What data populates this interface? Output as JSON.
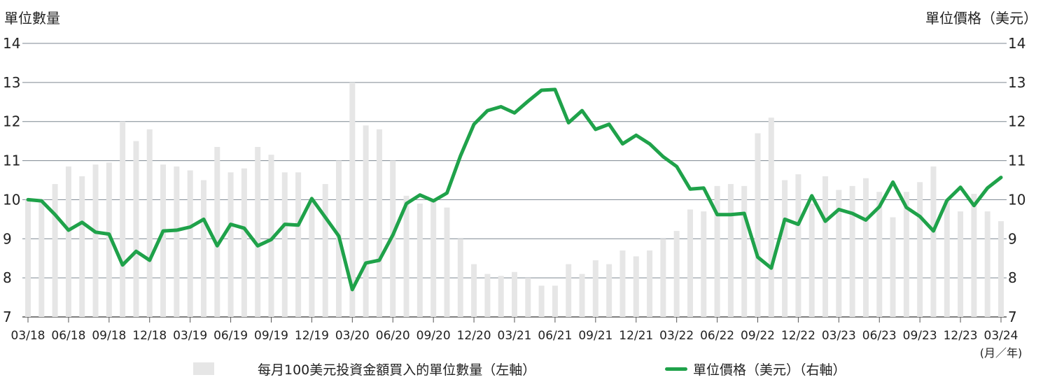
{
  "chart_data": {
    "type": "bar+line",
    "title": "",
    "left_axis_title": "單位數量",
    "right_axis_title": "單位價格（美元）",
    "x_unit_label": "(月／年)",
    "ylim": [
      7,
      14
    ],
    "yticks": [
      7,
      8,
      9,
      10,
      11,
      12,
      13,
      14
    ],
    "grid": true,
    "legend_position": "bottom",
    "x_tick_labels": [
      "03/18",
      "06/18",
      "09/18",
      "12/18",
      "03/19",
      "06/19",
      "09/19",
      "12/19",
      "03/20",
      "06/20",
      "09/20",
      "12/20",
      "03/21",
      "06/21",
      "09/21",
      "12/21",
      "03/22",
      "06/22",
      "09/22",
      "12/22",
      "03/23",
      "06/23",
      "09/23",
      "12/23",
      "03/24"
    ],
    "x_months": [
      "03/18",
      "04/18",
      "05/18",
      "06/18",
      "07/18",
      "08/18",
      "09/18",
      "10/18",
      "11/18",
      "12/18",
      "01/19",
      "02/19",
      "03/19",
      "04/19",
      "05/19",
      "06/19",
      "07/19",
      "08/19",
      "09/19",
      "10/19",
      "11/19",
      "12/19",
      "01/20",
      "02/20",
      "03/20",
      "04/20",
      "05/20",
      "06/20",
      "07/20",
      "08/20",
      "09/20",
      "10/20",
      "11/20",
      "12/20",
      "01/21",
      "02/21",
      "03/21",
      "04/21",
      "05/21",
      "06/21",
      "07/21",
      "08/21",
      "09/21",
      "10/21",
      "11/21",
      "12/21",
      "01/22",
      "02/22",
      "03/22",
      "04/22",
      "05/22",
      "06/22",
      "07/22",
      "08/22",
      "09/22",
      "10/22",
      "11/22",
      "12/22",
      "01/23",
      "02/23",
      "03/23",
      "04/23",
      "05/23",
      "06/23",
      "07/23",
      "08/23",
      "09/23",
      "10/23",
      "11/23",
      "12/23",
      "01/24",
      "02/24",
      "03/24"
    ],
    "series": [
      {
        "name": "每月100美元投資金額買入的單位數量（左軸）",
        "type": "bar",
        "axis": "left",
        "color": "#e6e6e6",
        "values": [
          10.0,
          10.0,
          10.4,
          10.85,
          10.6,
          10.9,
          10.95,
          12.0,
          11.5,
          11.8,
          10.9,
          10.85,
          10.75,
          10.5,
          11.35,
          10.7,
          10.8,
          11.35,
          11.15,
          10.7,
          10.7,
          10.0,
          10.4,
          11.0,
          13.0,
          11.9,
          11.8,
          11.0,
          10.1,
          9.9,
          10.0,
          9.8,
          9.0,
          8.35,
          8.1,
          8.05,
          8.15,
          8.0,
          7.8,
          7.8,
          8.35,
          8.1,
          8.45,
          8.35,
          8.7,
          8.55,
          8.7,
          9.0,
          9.2,
          9.75,
          9.7,
          10.35,
          10.4,
          10.35,
          11.7,
          12.1,
          10.5,
          10.65,
          9.9,
          10.6,
          10.25,
          10.35,
          10.55,
          10.2,
          9.55,
          10.2,
          10.45,
          10.85,
          10.0,
          9.7,
          10.15,
          9.7,
          9.45
        ]
      },
      {
        "name": "單位價格（美元）（右軸）",
        "type": "line",
        "axis": "right",
        "color": "#1fa24a",
        "values": [
          10.0,
          9.97,
          9.62,
          9.22,
          9.42,
          9.17,
          9.12,
          8.33,
          8.68,
          8.45,
          9.2,
          9.22,
          9.3,
          9.5,
          8.82,
          9.37,
          9.27,
          8.82,
          8.98,
          9.37,
          9.35,
          10.03,
          9.55,
          9.07,
          7.7,
          8.38,
          8.45,
          9.1,
          9.9,
          10.12,
          9.97,
          10.17,
          11.12,
          11.93,
          12.28,
          12.38,
          12.22,
          12.52,
          12.8,
          12.82,
          11.97,
          12.28,
          11.8,
          11.93,
          11.43,
          11.65,
          11.43,
          11.1,
          10.85,
          10.27,
          10.3,
          9.62,
          9.62,
          9.65,
          8.53,
          8.25,
          9.5,
          9.37,
          10.1,
          9.45,
          9.75,
          9.65,
          9.48,
          9.82,
          10.45,
          9.8,
          9.57,
          9.2,
          9.98,
          10.32,
          9.85,
          10.3,
          10.57
        ]
      }
    ]
  }
}
